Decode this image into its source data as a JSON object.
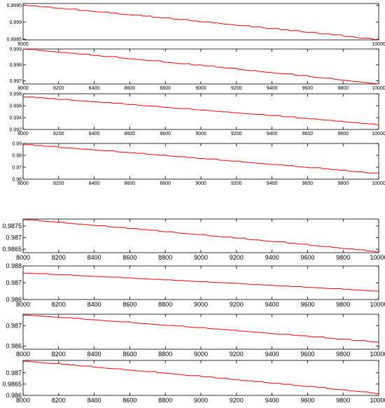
{
  "figure": {
    "line_color": "#ff0000",
    "axis_color": "#000000",
    "background": "#ffffff"
  },
  "chart_data": [
    {
      "type": "line",
      "title": "",
      "xlabel": "",
      "ylabel": "",
      "xlim": [
        8000,
        10000
      ],
      "ylim": [
        0.99848,
        0.99955
      ],
      "xticks": [
        8000,
        10000
      ],
      "xtick_labels": [
        "8000",
        "10000"
      ],
      "yticks": [
        0.9985,
        0.999,
        0.9995
      ],
      "ytick_labels": [
        "0.9985",
        "0.999",
        "0.9995"
      ],
      "grid": false,
      "series": [
        {
          "x": [
            8000,
            10000
          ],
          "y": [
            0.9995,
            0.99848
          ]
        }
      ]
    },
    {
      "type": "line",
      "title": "",
      "xlabel": "",
      "ylabel": "",
      "xlim": [
        8000,
        10000
      ],
      "ylim": [
        0.9968,
        0.999
      ],
      "xticks": [
        8000,
        8200,
        8400,
        8600,
        8800,
        9000,
        9200,
        9400,
        9600,
        9800,
        10000
      ],
      "xtick_labels": [
        "8000",
        "8200",
        "8400",
        "8600",
        "8800",
        "9000",
        "9200",
        "9400",
        "9600",
        "9800",
        "10000"
      ],
      "yticks": [
        0.997,
        0.998,
        0.999
      ],
      "ytick_labels": [
        "0.997",
        "0.998",
        "0.999"
      ],
      "grid": false,
      "series": [
        {
          "x": [
            8000,
            10000
          ],
          "y": [
            0.999,
            0.9968
          ]
        }
      ]
    },
    {
      "type": "line",
      "title": "",
      "xlabel": "",
      "ylabel": "",
      "xlim": [
        8000,
        10000
      ],
      "ylim": [
        0.992,
        0.998
      ],
      "xticks": [
        8000,
        8200,
        8400,
        8600,
        8800,
        9000,
        9200,
        9400,
        9600,
        9800,
        10000
      ],
      "xtick_labels": [
        "8000",
        "8200",
        "8400",
        "8600",
        "8800",
        "9000",
        "9200",
        "9400",
        "9600",
        "9800",
        "10000"
      ],
      "yticks": [
        0.992,
        0.994,
        0.996,
        0.998
      ],
      "ytick_labels": [
        "0.992",
        "0.994",
        "0.996",
        "0.998"
      ],
      "grid": false,
      "series": [
        {
          "x": [
            8000,
            10000
          ],
          "y": [
            0.9975,
            0.9928
          ]
        }
      ]
    },
    {
      "type": "line",
      "title": "",
      "xlabel": "",
      "ylabel": "",
      "xlim": [
        8000,
        10000
      ],
      "ylim": [
        0.96,
        0.99
      ],
      "xticks": [
        8000,
        8200,
        8400,
        8600,
        8800,
        9000,
        9200,
        9400,
        9600,
        9800,
        10000
      ],
      "xtick_labels": [
        "8000",
        "8200",
        "8400",
        "8600",
        "8800",
        "9000",
        "9200",
        "9400",
        "9600",
        "9800",
        "10000"
      ],
      "yticks": [
        0.96,
        0.97,
        0.98,
        0.99
      ],
      "ytick_labels": [
        "0.96",
        "0.97",
        "0.98",
        "0.99"
      ],
      "grid": false,
      "series": [
        {
          "x": [
            8000,
            10000
          ],
          "y": [
            0.989,
            0.9645
          ]
        }
      ]
    },
    {
      "type": "line",
      "title": "",
      "xlabel": "",
      "ylabel": "",
      "xlim": [
        8000,
        10000
      ],
      "ylim": [
        0.98635,
        0.9878
      ],
      "xticks": [
        8000,
        8200,
        8400,
        8600,
        8800,
        9000,
        9200,
        9400,
        9600,
        9800,
        10000
      ],
      "xtick_labels": [
        "8000",
        "8200",
        "8400",
        "8600",
        "8800",
        "9000",
        "9200",
        "9400",
        "9600",
        "9800",
        "10000"
      ],
      "yticks": [
        0.9865,
        0.987,
        0.9875
      ],
      "ytick_labels": [
        "0.9865",
        "0.987",
        "0.9875"
      ],
      "grid": false,
      "series": [
        {
          "x": [
            8000,
            10000
          ],
          "y": [
            0.98778,
            0.98638
          ]
        }
      ]
    },
    {
      "type": "line",
      "title": "",
      "xlabel": "",
      "ylabel": "",
      "xlim": [
        8000,
        10000
      ],
      "ylim": [
        0.986,
        0.988
      ],
      "xticks": [
        8000,
        8200,
        8400,
        8600,
        8800,
        9000,
        9200,
        9400,
        9600,
        9800,
        10000
      ],
      "xtick_labels": [
        "8000",
        "8200",
        "8400",
        "8600",
        "8800",
        "9000",
        "9200",
        "9400",
        "9600",
        "9800",
        "10000"
      ],
      "yticks": [
        0.986,
        0.987,
        0.988
      ],
      "ytick_labels": [
        "0.986",
        "0.987",
        "0.988"
      ],
      "grid": false,
      "series": [
        {
          "x": [
            8000,
            10000
          ],
          "y": [
            0.98758,
            0.98649
          ]
        }
      ]
    },
    {
      "type": "line",
      "title": "",
      "xlabel": "",
      "ylabel": "",
      "xlim": [
        8000,
        10000
      ],
      "ylim": [
        0.98585,
        0.98755
      ],
      "xticks": [
        8000,
        8200,
        8400,
        8600,
        8800,
        9000,
        9200,
        9400,
        9600,
        9800,
        10000
      ],
      "xtick_labels": [
        "8000",
        "8200",
        "8400",
        "8600",
        "8800",
        "9000",
        "9200",
        "9400",
        "9600",
        "9800",
        "10000"
      ],
      "yticks": [
        0.986,
        0.987
      ],
      "ytick_labels": [
        "0.986",
        "0.987"
      ],
      "grid": false,
      "series": [
        {
          "x": [
            8000,
            10000
          ],
          "y": [
            0.98752,
            0.98618
          ]
        }
      ]
    },
    {
      "type": "line",
      "title": "",
      "xlabel": "",
      "ylabel": "",
      "xlim": [
        8000,
        10000
      ],
      "ylim": [
        0.986,
        0.98755
      ],
      "xticks": [
        8000,
        8200,
        8400,
        8600,
        8800,
        9000,
        9200,
        9400,
        9600,
        9800,
        10000
      ],
      "xtick_labels": [
        "8000",
        "8200",
        "8400",
        "8600",
        "8800",
        "9000",
        "9200",
        "9400",
        "9600",
        "9800",
        "10000"
      ],
      "yticks": [
        0.986,
        0.9865,
        0.987
      ],
      "ytick_labels": [
        "0.986",
        "0.9865",
        "0.987"
      ],
      "grid": false,
      "series": [
        {
          "x": [
            8000,
            10000
          ],
          "y": [
            0.98752,
            0.98608
          ]
        }
      ]
    }
  ]
}
